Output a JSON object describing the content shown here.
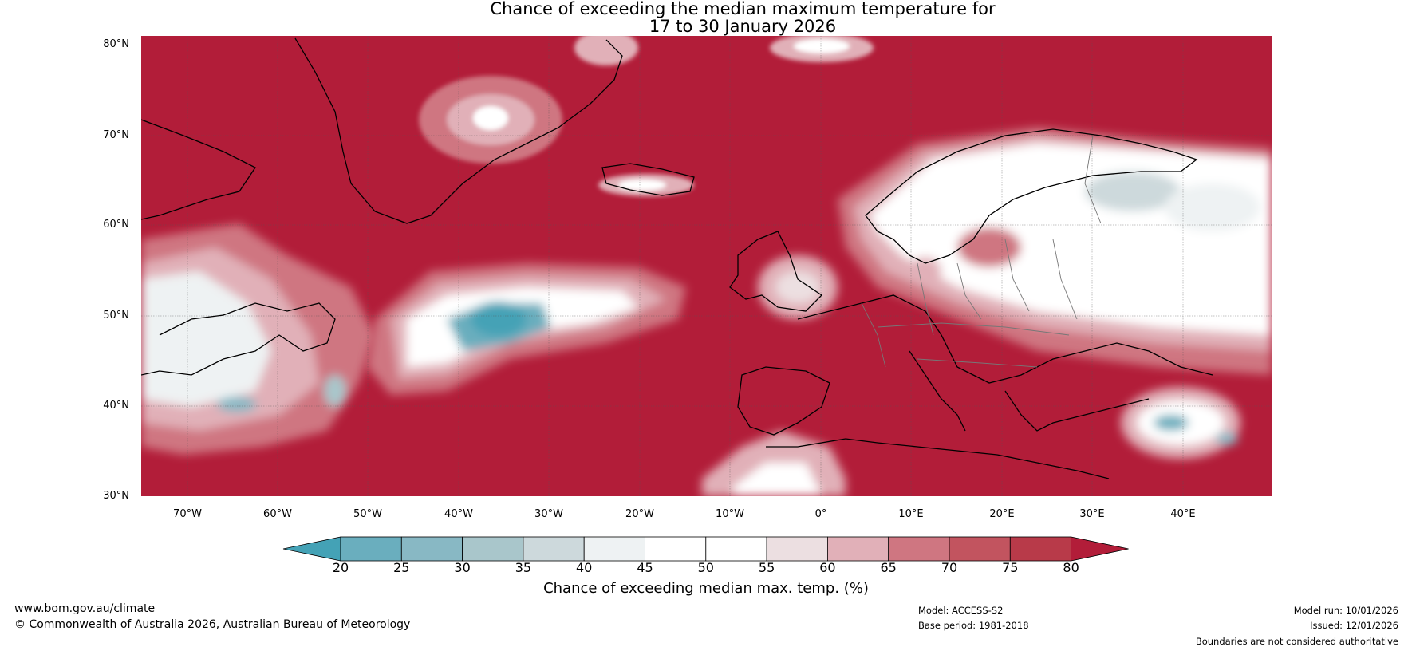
{
  "title": {
    "line1": "Chance of exceeding the median maximum temperature for",
    "line2": "17 to 30 January 2026"
  },
  "map": {
    "lat_labels": [
      "80°N",
      "70°N",
      "60°N",
      "50°N",
      "40°N",
      "30°N"
    ],
    "lon_labels": [
      "70°W",
      "60°W",
      "50°W",
      "40°W",
      "30°W",
      "20°W",
      "10°W",
      "0°",
      "10°E",
      "20°E",
      "30°E",
      "40°E"
    ],
    "background_color": "#b21d39"
  },
  "colorbar": {
    "ticks": [
      "20",
      "25",
      "30",
      "35",
      "40",
      "45",
      "50",
      "55",
      "60",
      "65",
      "70",
      "75",
      "80"
    ],
    "colors": [
      "#44a2b6",
      "#6aaebe",
      "#88b8c4",
      "#a9c6cb",
      "#cdd9dc",
      "#eef2f3",
      "#ffffff",
      "#ffffff",
      "#ecdfe1",
      "#e1b0b8",
      "#cf7681",
      "#c2545f",
      "#b83a49",
      "#b21d39"
    ],
    "label": "Chance of exceeding median max. temp. (%)"
  },
  "footer": {
    "website": "www.bom.gov.au/climate",
    "copyright": "© Commonwealth of Australia 2026, Australian Bureau of Meteorology",
    "model": "Model: ACCESS-S2",
    "base_period": "Base period: 1981-2018",
    "model_run": "Model run: 10/01/2026",
    "issued": "Issued: 12/01/2026",
    "disclaimer": "Boundaries are not considered authoritative"
  }
}
